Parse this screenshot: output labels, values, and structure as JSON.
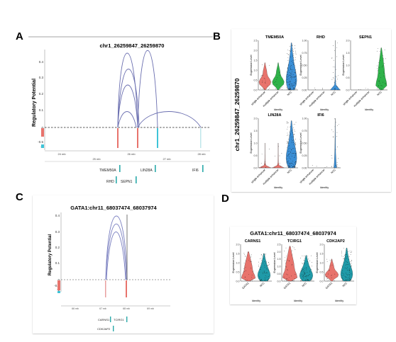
{
  "panels": {
    "A": {
      "letter": "A",
      "title": "chr1_26259847_26259870",
      "ylabel": "Regulatory Potential",
      "yticks": [
        "0.4",
        "0.3",
        "0.2",
        "0.1",
        "0",
        "-0.5",
        "-1"
      ],
      "xticks_top": [
        "24 mb",
        "26 mb",
        "28 mb"
      ],
      "xticks_bottom": [
        "25 mb",
        "27 mb"
      ],
      "genes": [
        "TMEM50A",
        "LIN28A",
        "IFI6",
        "RHD",
        "SEPN1"
      ]
    },
    "B": {
      "letter": "B",
      "ylabel": "chr1_26259847_26259870",
      "violins": [
        {
          "gene": "TMEM50A",
          "yticks": [
            "2.5",
            "2.0",
            "1.5",
            "1.0",
            "0.5",
            "0.0"
          ],
          "cats": [
            "single enhancer",
            "multiple enhancer",
            "NTC"
          ]
        },
        {
          "gene": "RHD",
          "yticks": [
            "1.00",
            "0.75",
            "0.50",
            "0.25",
            "0.00"
          ],
          "cats": [
            "single enhancer",
            "multiple enhancer",
            "NTC"
          ]
        },
        {
          "gene": "SEPN1",
          "yticks": [
            "2.0",
            "1.5",
            "1.0",
            "0.5",
            "0.0"
          ],
          "cats": [
            "single enhancer",
            "multiple enhancer",
            "NTC"
          ]
        },
        {
          "gene": "LIN28A",
          "yticks": [
            "2.0",
            "1.5",
            "1.0",
            "0.5",
            "0.0"
          ],
          "cats": [
            "single enhancer",
            "multiple enhancer",
            "NTC"
          ]
        },
        {
          "gene": "IFI6",
          "yticks": [
            "1.00",
            "0.75",
            "0.50",
            "0.25",
            "0.00"
          ],
          "cats": [
            "single enhancer",
            "multiple enhancer",
            "NTC"
          ]
        }
      ],
      "violin_ylabel": "Expression Level",
      "violin_xlabel": "Identity"
    },
    "C": {
      "letter": "C",
      "title": "GATA1:chr11_68037474_68037974",
      "ylabel": "Regulatory Potential",
      "yticks": [
        "0.4",
        "0.3",
        "0.2",
        "0.1",
        "0",
        "-0.5",
        "-1"
      ],
      "xticks": [
        "66 mb",
        "67 mb",
        "68 mb",
        "69 mb"
      ],
      "genes": [
        "CARNS1",
        "TCIRG1",
        "CDK2AP2"
      ]
    },
    "D": {
      "letter": "D",
      "title": "GATA1:chr11_68037474_68037974",
      "violins": [
        {
          "gene": "CARNS1",
          "yticks": [
            "2.0",
            "1.5",
            "1.0",
            "0.5",
            "0.0"
          ],
          "cats": [
            "GATA1",
            "NTC"
          ]
        },
        {
          "gene": "TCIRG1",
          "yticks": [
            "2.5",
            "2.0",
            "1.5",
            "1.0",
            "0.5",
            "0.0"
          ],
          "cats": [
            "GATA1",
            "NTC"
          ]
        },
        {
          "gene": "CDK2AP2",
          "yticks": [
            "2.0",
            "1.5",
            "1.0",
            "0.5",
            "0.0"
          ],
          "cats": [
            "GATA1",
            "NTC"
          ]
        }
      ],
      "violin_ylabel": "Expression Level",
      "violin_xlabel": "Identity"
    }
  },
  "colors": {
    "red": "#e8736c",
    "blue": "#3b8fd6",
    "green": "#2fb24a",
    "teal": "#1f9aa8",
    "arc": "#6b6fb0",
    "cyan": "#3fc4d8"
  }
}
